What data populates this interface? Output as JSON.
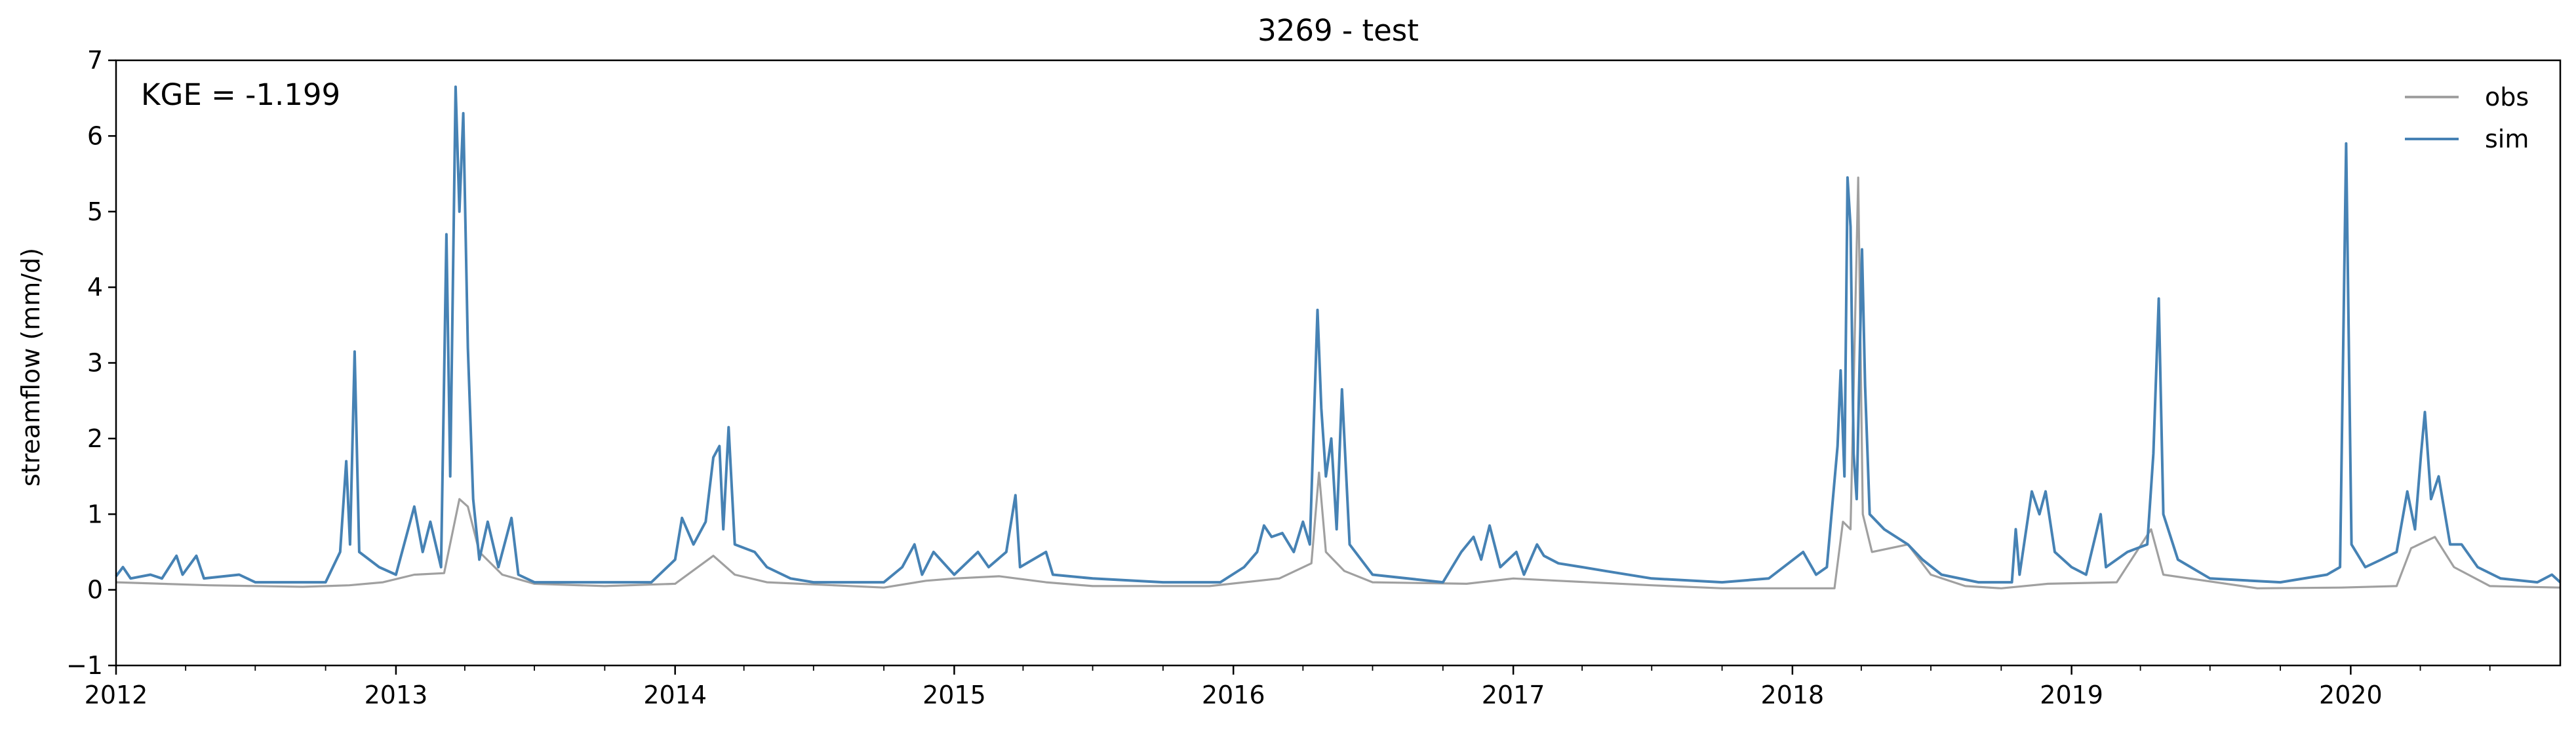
{
  "chart_data": {
    "type": "line",
    "title": "3269 - test",
    "xlabel": "",
    "ylabel": "streamflow (mm/d)",
    "x_range": [
      "2012-01-01",
      "2020-10-01"
    ],
    "ylim": [
      -1,
      7
    ],
    "x_ticks": [
      "2012",
      "2013",
      "2014",
      "2015",
      "2016",
      "2017",
      "2018",
      "2019",
      "2020"
    ],
    "y_ticks": [
      "−1",
      "0",
      "1",
      "2",
      "3",
      "4",
      "5",
      "6",
      "7"
    ],
    "grid": false,
    "legend_position": "top-right",
    "annotation": "KGE = -1.199",
    "series": [
      {
        "name": "obs",
        "color": "#a0a0a0",
        "points": [
          [
            "2012-01-01",
            0.1
          ],
          [
            "2012-05-01",
            0.06
          ],
          [
            "2012-09-01",
            0.04
          ],
          [
            "2012-11-01",
            0.06
          ],
          [
            "2012-12-15",
            0.1
          ],
          [
            "2013-01-25",
            0.2
          ],
          [
            "2013-03-05",
            0.22
          ],
          [
            "2013-03-25",
            1.2
          ],
          [
            "2013-04-05",
            1.1
          ],
          [
            "2013-04-20",
            0.5
          ],
          [
            "2013-05-20",
            0.2
          ],
          [
            "2013-07-01",
            0.08
          ],
          [
            "2013-10-01",
            0.05
          ],
          [
            "2014-01-01",
            0.08
          ],
          [
            "2014-02-20",
            0.45
          ],
          [
            "2014-03-20",
            0.2
          ],
          [
            "2014-05-01",
            0.1
          ],
          [
            "2014-10-01",
            0.03
          ],
          [
            "2014-11-25",
            0.12
          ],
          [
            "2015-01-01",
            0.15
          ],
          [
            "2015-03-01",
            0.18
          ],
          [
            "2015-05-01",
            0.1
          ],
          [
            "2015-07-01",
            0.05
          ],
          [
            "2015-12-01",
            0.05
          ],
          [
            "2016-03-01",
            0.15
          ],
          [
            "2016-04-12",
            0.35
          ],
          [
            "2016-04-22",
            1.55
          ],
          [
            "2016-05-01",
            0.5
          ],
          [
            "2016-05-25",
            0.25
          ],
          [
            "2016-07-01",
            0.1
          ],
          [
            "2016-11-01",
            0.08
          ],
          [
            "2017-01-01",
            0.15
          ],
          [
            "2017-03-01",
            0.12
          ],
          [
            "2017-07-01",
            0.06
          ],
          [
            "2017-10-01",
            0.02
          ],
          [
            "2018-01-01",
            0.02
          ],
          [
            "2018-02-25",
            0.02
          ],
          [
            "2018-03-08",
            0.9
          ],
          [
            "2018-03-18",
            0.8
          ],
          [
            "2018-03-28",
            5.45
          ],
          [
            "2018-04-03",
            1.0
          ],
          [
            "2018-04-15",
            0.5
          ],
          [
            "2018-06-01",
            0.6
          ],
          [
            "2018-07-01",
            0.2
          ],
          [
            "2018-08-15",
            0.05
          ],
          [
            "2018-10-01",
            0.02
          ],
          [
            "2018-12-01",
            0.08
          ],
          [
            "2019-03-01",
            0.1
          ],
          [
            "2019-04-15",
            0.8
          ],
          [
            "2019-05-01",
            0.2
          ],
          [
            "2019-09-01",
            0.02
          ],
          [
            "2019-12-20",
            0.03
          ],
          [
            "2020-03-01",
            0.05
          ],
          [
            "2020-03-20",
            0.55
          ],
          [
            "2020-04-20",
            0.7
          ],
          [
            "2020-05-15",
            0.3
          ],
          [
            "2020-07-01",
            0.05
          ],
          [
            "2020-10-01",
            0.03
          ]
        ]
      },
      {
        "name": "sim",
        "color": "#4682b4",
        "points": [
          [
            "2012-01-01",
            0.18
          ],
          [
            "2012-01-10",
            0.3
          ],
          [
            "2012-01-20",
            0.15
          ],
          [
            "2012-02-15",
            0.2
          ],
          [
            "2012-03-01",
            0.15
          ],
          [
            "2012-03-20",
            0.45
          ],
          [
            "2012-03-28",
            0.2
          ],
          [
            "2012-04-15",
            0.45
          ],
          [
            "2012-04-25",
            0.15
          ],
          [
            "2012-06-10",
            0.2
          ],
          [
            "2012-07-01",
            0.1
          ],
          [
            "2012-10-01",
            0.1
          ],
          [
            "2012-10-20",
            0.5
          ],
          [
            "2012-10-28",
            1.7
          ],
          [
            "2012-11-02",
            0.6
          ],
          [
            "2012-11-08",
            3.15
          ],
          [
            "2012-11-14",
            0.5
          ],
          [
            "2012-12-10",
            0.3
          ],
          [
            "2013-01-01",
            0.2
          ],
          [
            "2013-01-25",
            1.1
          ],
          [
            "2013-02-05",
            0.5
          ],
          [
            "2013-02-15",
            0.9
          ],
          [
            "2013-03-01",
            0.3
          ],
          [
            "2013-03-08",
            4.7
          ],
          [
            "2013-03-13",
            1.5
          ],
          [
            "2013-03-20",
            6.65
          ],
          [
            "2013-03-25",
            5.0
          ],
          [
            "2013-03-30",
            6.3
          ],
          [
            "2013-04-05",
            3.2
          ],
          [
            "2013-04-12",
            1.2
          ],
          [
            "2013-04-20",
            0.4
          ],
          [
            "2013-05-01",
            0.9
          ],
          [
            "2013-05-15",
            0.3
          ],
          [
            "2013-06-01",
            0.95
          ],
          [
            "2013-06-10",
            0.2
          ],
          [
            "2013-07-01",
            0.1
          ],
          [
            "2013-10-01",
            0.1
          ],
          [
            "2013-12-01",
            0.1
          ],
          [
            "2014-01-01",
            0.4
          ],
          [
            "2014-01-10",
            0.95
          ],
          [
            "2014-01-25",
            0.6
          ],
          [
            "2014-02-10",
            0.9
          ],
          [
            "2014-02-20",
            1.75
          ],
          [
            "2014-02-28",
            1.9
          ],
          [
            "2014-03-05",
            0.8
          ],
          [
            "2014-03-12",
            2.15
          ],
          [
            "2014-03-20",
            0.6
          ],
          [
            "2014-04-15",
            0.5
          ],
          [
            "2014-05-01",
            0.3
          ],
          [
            "2014-06-01",
            0.15
          ],
          [
            "2014-07-01",
            0.1
          ],
          [
            "2014-10-01",
            0.1
          ],
          [
            "2014-10-25",
            0.3
          ],
          [
            "2014-11-10",
            0.6
          ],
          [
            "2014-11-20",
            0.2
          ],
          [
            "2014-12-05",
            0.5
          ],
          [
            "2015-01-01",
            0.2
          ],
          [
            "2015-02-01",
            0.5
          ],
          [
            "2015-02-15",
            0.3
          ],
          [
            "2015-03-10",
            0.5
          ],
          [
            "2015-03-22",
            1.25
          ],
          [
            "2015-03-28",
            0.3
          ],
          [
            "2015-05-01",
            0.5
          ],
          [
            "2015-05-10",
            0.2
          ],
          [
            "2015-07-01",
            0.15
          ],
          [
            "2015-10-01",
            0.1
          ],
          [
            "2015-12-15",
            0.1
          ],
          [
            "2016-01-15",
            0.3
          ],
          [
            "2016-02-01",
            0.5
          ],
          [
            "2016-02-10",
            0.85
          ],
          [
            "2016-02-20",
            0.7
          ],
          [
            "2016-03-05",
            0.75
          ],
          [
            "2016-03-20",
            0.5
          ],
          [
            "2016-04-01",
            0.9
          ],
          [
            "2016-04-10",
            0.6
          ],
          [
            "2016-04-20",
            3.7
          ],
          [
            "2016-04-25",
            2.4
          ],
          [
            "2016-05-01",
            1.5
          ],
          [
            "2016-05-08",
            2.0
          ],
          [
            "2016-05-15",
            0.8
          ],
          [
            "2016-05-22",
            2.65
          ],
          [
            "2016-06-01",
            0.6
          ],
          [
            "2016-07-01",
            0.2
          ],
          [
            "2016-10-01",
            0.1
          ],
          [
            "2016-10-25",
            0.5
          ],
          [
            "2016-11-10",
            0.7
          ],
          [
            "2016-11-20",
            0.4
          ],
          [
            "2016-12-01",
            0.85
          ],
          [
            "2016-12-15",
            0.3
          ],
          [
            "2017-01-05",
            0.5
          ],
          [
            "2017-01-15",
            0.2
          ],
          [
            "2017-02-01",
            0.6
          ],
          [
            "2017-02-10",
            0.45
          ],
          [
            "2017-03-01",
            0.35
          ],
          [
            "2017-04-01",
            0.3
          ],
          [
            "2017-05-01",
            0.25
          ],
          [
            "2017-07-01",
            0.15
          ],
          [
            "2017-10-01",
            0.1
          ],
          [
            "2017-12-01",
            0.15
          ],
          [
            "2018-01-15",
            0.5
          ],
          [
            "2018-02-01",
            0.2
          ],
          [
            "2018-02-15",
            0.3
          ],
          [
            "2018-03-01",
            1.9
          ],
          [
            "2018-03-05",
            2.9
          ],
          [
            "2018-03-10",
            1.5
          ],
          [
            "2018-03-14",
            5.45
          ],
          [
            "2018-03-18",
            4.8
          ],
          [
            "2018-03-22",
            1.8
          ],
          [
            "2018-03-26",
            1.2
          ],
          [
            "2018-04-02",
            4.5
          ],
          [
            "2018-04-06",
            2.7
          ],
          [
            "2018-04-12",
            1.0
          ],
          [
            "2018-05-01",
            0.8
          ],
          [
            "2018-06-01",
            0.6
          ],
          [
            "2018-06-20",
            0.4
          ],
          [
            "2018-07-15",
            0.2
          ],
          [
            "2018-09-01",
            0.1
          ],
          [
            "2018-10-15",
            0.1
          ],
          [
            "2018-10-20",
            0.8
          ],
          [
            "2018-10-25",
            0.2
          ],
          [
            "2018-11-10",
            1.3
          ],
          [
            "2018-11-20",
            1.0
          ],
          [
            "2018-11-28",
            1.3
          ],
          [
            "2018-12-10",
            0.5
          ],
          [
            "2019-01-01",
            0.3
          ],
          [
            "2019-01-20",
            0.2
          ],
          [
            "2019-02-08",
            1.0
          ],
          [
            "2019-02-15",
            0.3
          ],
          [
            "2019-03-15",
            0.5
          ],
          [
            "2019-04-10",
            0.6
          ],
          [
            "2019-04-18",
            1.8
          ],
          [
            "2019-04-25",
            3.85
          ],
          [
            "2019-05-01",
            1.0
          ],
          [
            "2019-05-20",
            0.4
          ],
          [
            "2019-07-01",
            0.15
          ],
          [
            "2019-10-01",
            0.1
          ],
          [
            "2019-12-01",
            0.2
          ],
          [
            "2019-12-18",
            0.3
          ],
          [
            "2019-12-26",
            5.9
          ],
          [
            "2020-01-02",
            0.6
          ],
          [
            "2020-01-20",
            0.3
          ],
          [
            "2020-02-10",
            0.4
          ],
          [
            "2020-03-01",
            0.5
          ],
          [
            "2020-03-15",
            1.3
          ],
          [
            "2020-03-25",
            0.8
          ],
          [
            "2020-04-02",
            1.8
          ],
          [
            "2020-04-07",
            2.35
          ],
          [
            "2020-04-15",
            1.2
          ],
          [
            "2020-04-25",
            1.5
          ],
          [
            "2020-05-10",
            0.6
          ],
          [
            "2020-05-25",
            0.6
          ],
          [
            "2020-06-15",
            0.3
          ],
          [
            "2020-07-15",
            0.15
          ],
          [
            "2020-09-01",
            0.1
          ],
          [
            "2020-09-20",
            0.2
          ],
          [
            "2020-10-01",
            0.1
          ]
        ]
      }
    ]
  }
}
